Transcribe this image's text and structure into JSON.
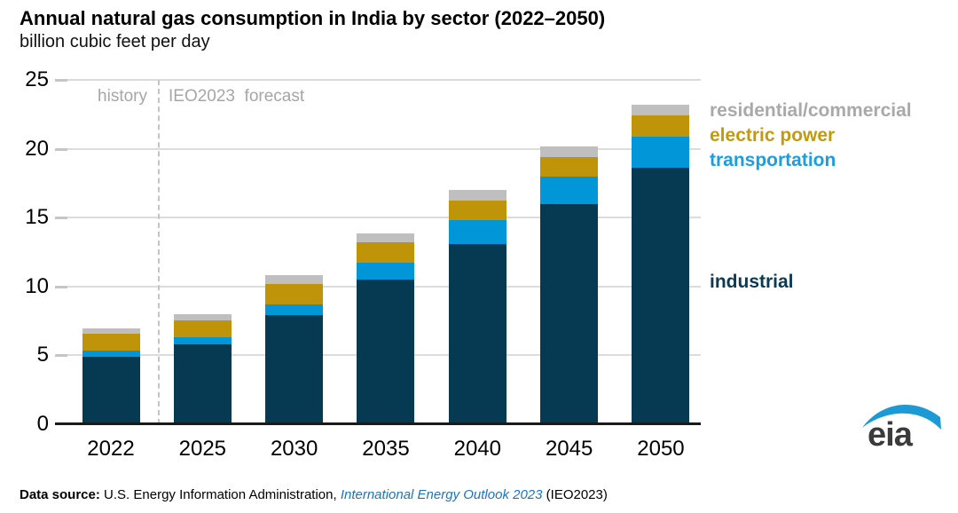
{
  "header": {
    "title": "Annual natural gas consumption in India by sector (2022–2050)",
    "subtitle": "billion cubic feet per day"
  },
  "annotations": {
    "history_label": "history",
    "forecast_label": "IEO2023  forecast"
  },
  "legend": [
    {
      "label": "residential/commercial",
      "color": "#a9a9a9"
    },
    {
      "label": "electric power",
      "color": "#c49a0c"
    },
    {
      "label": "transportation",
      "color": "#1b9dde"
    },
    {
      "label": "industrial",
      "color": "#0b3a54"
    }
  ],
  "chart_data": {
    "type": "bar",
    "stacked": true,
    "title": "Annual natural gas consumption in India by sector (2022–2050)",
    "subtitle_units": "billion cubic feet per day",
    "categories": [
      "2022",
      "2025",
      "2030",
      "2035",
      "2040",
      "2045",
      "2050"
    ],
    "series": [
      {
        "name": "industrial",
        "color": "#053a52",
        "values": [
          4.9,
          5.8,
          7.9,
          10.5,
          13.1,
          16.0,
          18.6
        ]
      },
      {
        "name": "transportation",
        "color": "#0096d7",
        "values": [
          0.45,
          0.5,
          0.8,
          1.2,
          1.7,
          2.0,
          2.3
        ]
      },
      {
        "name": "electric power",
        "color": "#bf9409",
        "values": [
          1.2,
          1.25,
          1.45,
          1.5,
          1.45,
          1.4,
          1.5
        ]
      },
      {
        "name": "residential/commercial",
        "color": "#bfbfbf",
        "values": [
          0.4,
          0.45,
          0.65,
          0.65,
          0.75,
          0.8,
          0.8
        ]
      }
    ],
    "totals": [
      6.95,
      8.0,
      10.8,
      13.85,
      17.0,
      20.2,
      23.2
    ],
    "ylim": [
      0,
      25
    ],
    "yticks": [
      0,
      5,
      10,
      15,
      20,
      25
    ],
    "grid": true,
    "legend_position": "right",
    "divider_between": [
      "2022",
      "2025"
    ],
    "annotation_history": "history",
    "annotation_forecast": "IEO2023  forecast"
  },
  "footer": {
    "datasource_bold": "Data source:",
    "datasource_text": " U.S. Energy Information Administration, ",
    "datasource_link": "International Energy Outlook 2023",
    "datasource_suffix": " (IEO2023)"
  },
  "logo": {
    "text": "eia"
  }
}
